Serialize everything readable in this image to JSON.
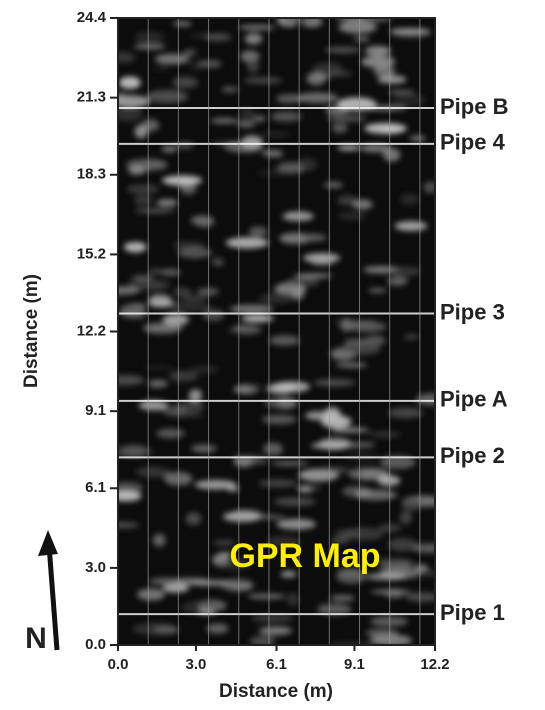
{
  "chart_data": {
    "type": "image",
    "title": "GPR Map",
    "north_label": "N",
    "x_label": "Distance (m)",
    "y_label": "Distance (m)",
    "xlim": [
      0,
      12.2
    ],
    "ylim": [
      0,
      24.4
    ],
    "xticks": [
      {
        "value": 0,
        "label": "0.0"
      },
      {
        "value": 3,
        "label": "3.0"
      },
      6.1,
      9.1,
      12.2
    ],
    "yticks": [
      {
        "value": 0,
        "label": "0.0"
      },
      {
        "value": 3,
        "label": "3.0"
      },
      6.1,
      9.1,
      12.2,
      15.2,
      18.3,
      21.3,
      24.4
    ],
    "pipes": [
      {
        "label": "Pipe B",
        "y": 20.9
      },
      {
        "label": "Pipe 4",
        "y": 19.5
      },
      {
        "label": "Pipe 3",
        "y": 12.9
      },
      {
        "label": "Pipe A",
        "y": 9.5
      },
      {
        "label": "Pipe 2",
        "y": 7.3
      },
      {
        "label": "Pipe 1",
        "y": 1.2
      }
    ]
  }
}
